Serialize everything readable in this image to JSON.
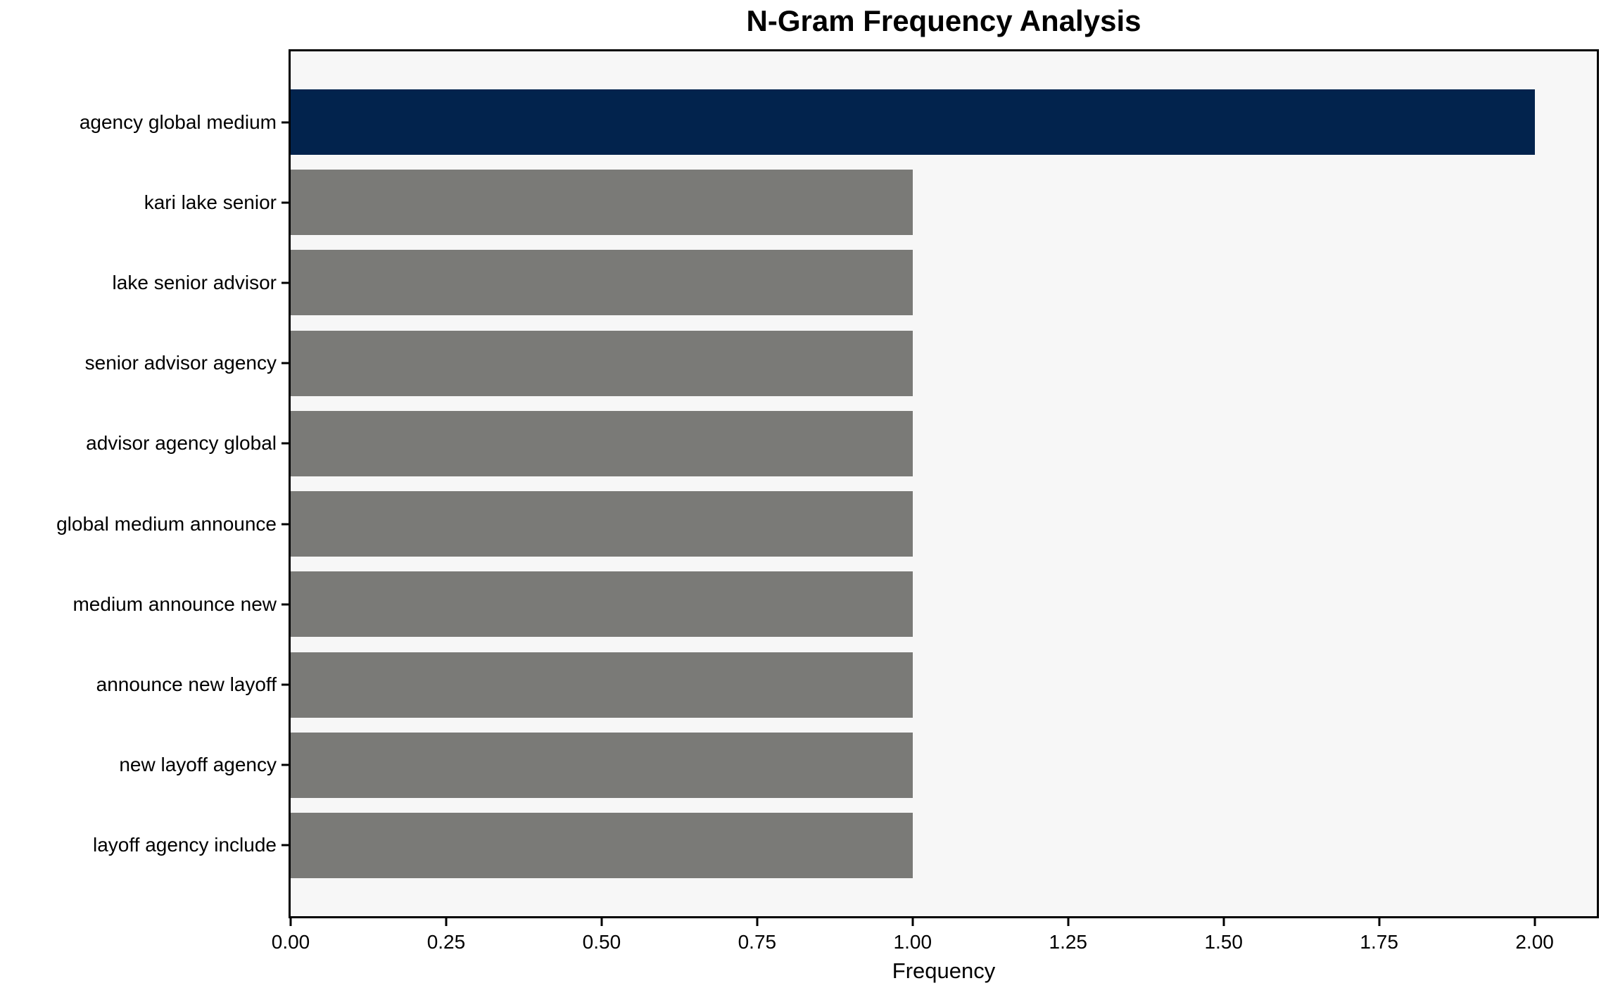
{
  "chart_data": {
    "type": "bar",
    "orientation": "horizontal",
    "title": "N-Gram Frequency Analysis",
    "xlabel": "Frequency",
    "ylabel": "",
    "categories": [
      "agency global medium",
      "kari lake senior",
      "lake senior advisor",
      "senior advisor agency",
      "advisor agency global",
      "global medium announce",
      "medium announce new",
      "announce new layoff",
      "new layoff agency",
      "layoff agency include"
    ],
    "values": [
      2,
      1,
      1,
      1,
      1,
      1,
      1,
      1,
      1,
      1
    ],
    "highlight_index": 0,
    "colors": {
      "highlight": "#02234d",
      "default": "#7a7a77",
      "plot_background": "#f7f7f7",
      "figure_background": "#ffffff",
      "spine": "#000000",
      "text": "#000000"
    },
    "xlim": [
      0,
      2.1
    ],
    "xticks": [
      {
        "value": 0.0,
        "label": "0.00"
      },
      {
        "value": 0.25,
        "label": "0.25"
      },
      {
        "value": 0.5,
        "label": "0.50"
      },
      {
        "value": 0.75,
        "label": "0.75"
      },
      {
        "value": 1.0,
        "label": "1.00"
      },
      {
        "value": 1.25,
        "label": "1.25"
      },
      {
        "value": 1.5,
        "label": "1.50"
      },
      {
        "value": 1.75,
        "label": "1.75"
      },
      {
        "value": 2.0,
        "label": "2.00"
      }
    ],
    "grid": false,
    "legend": false
  }
}
